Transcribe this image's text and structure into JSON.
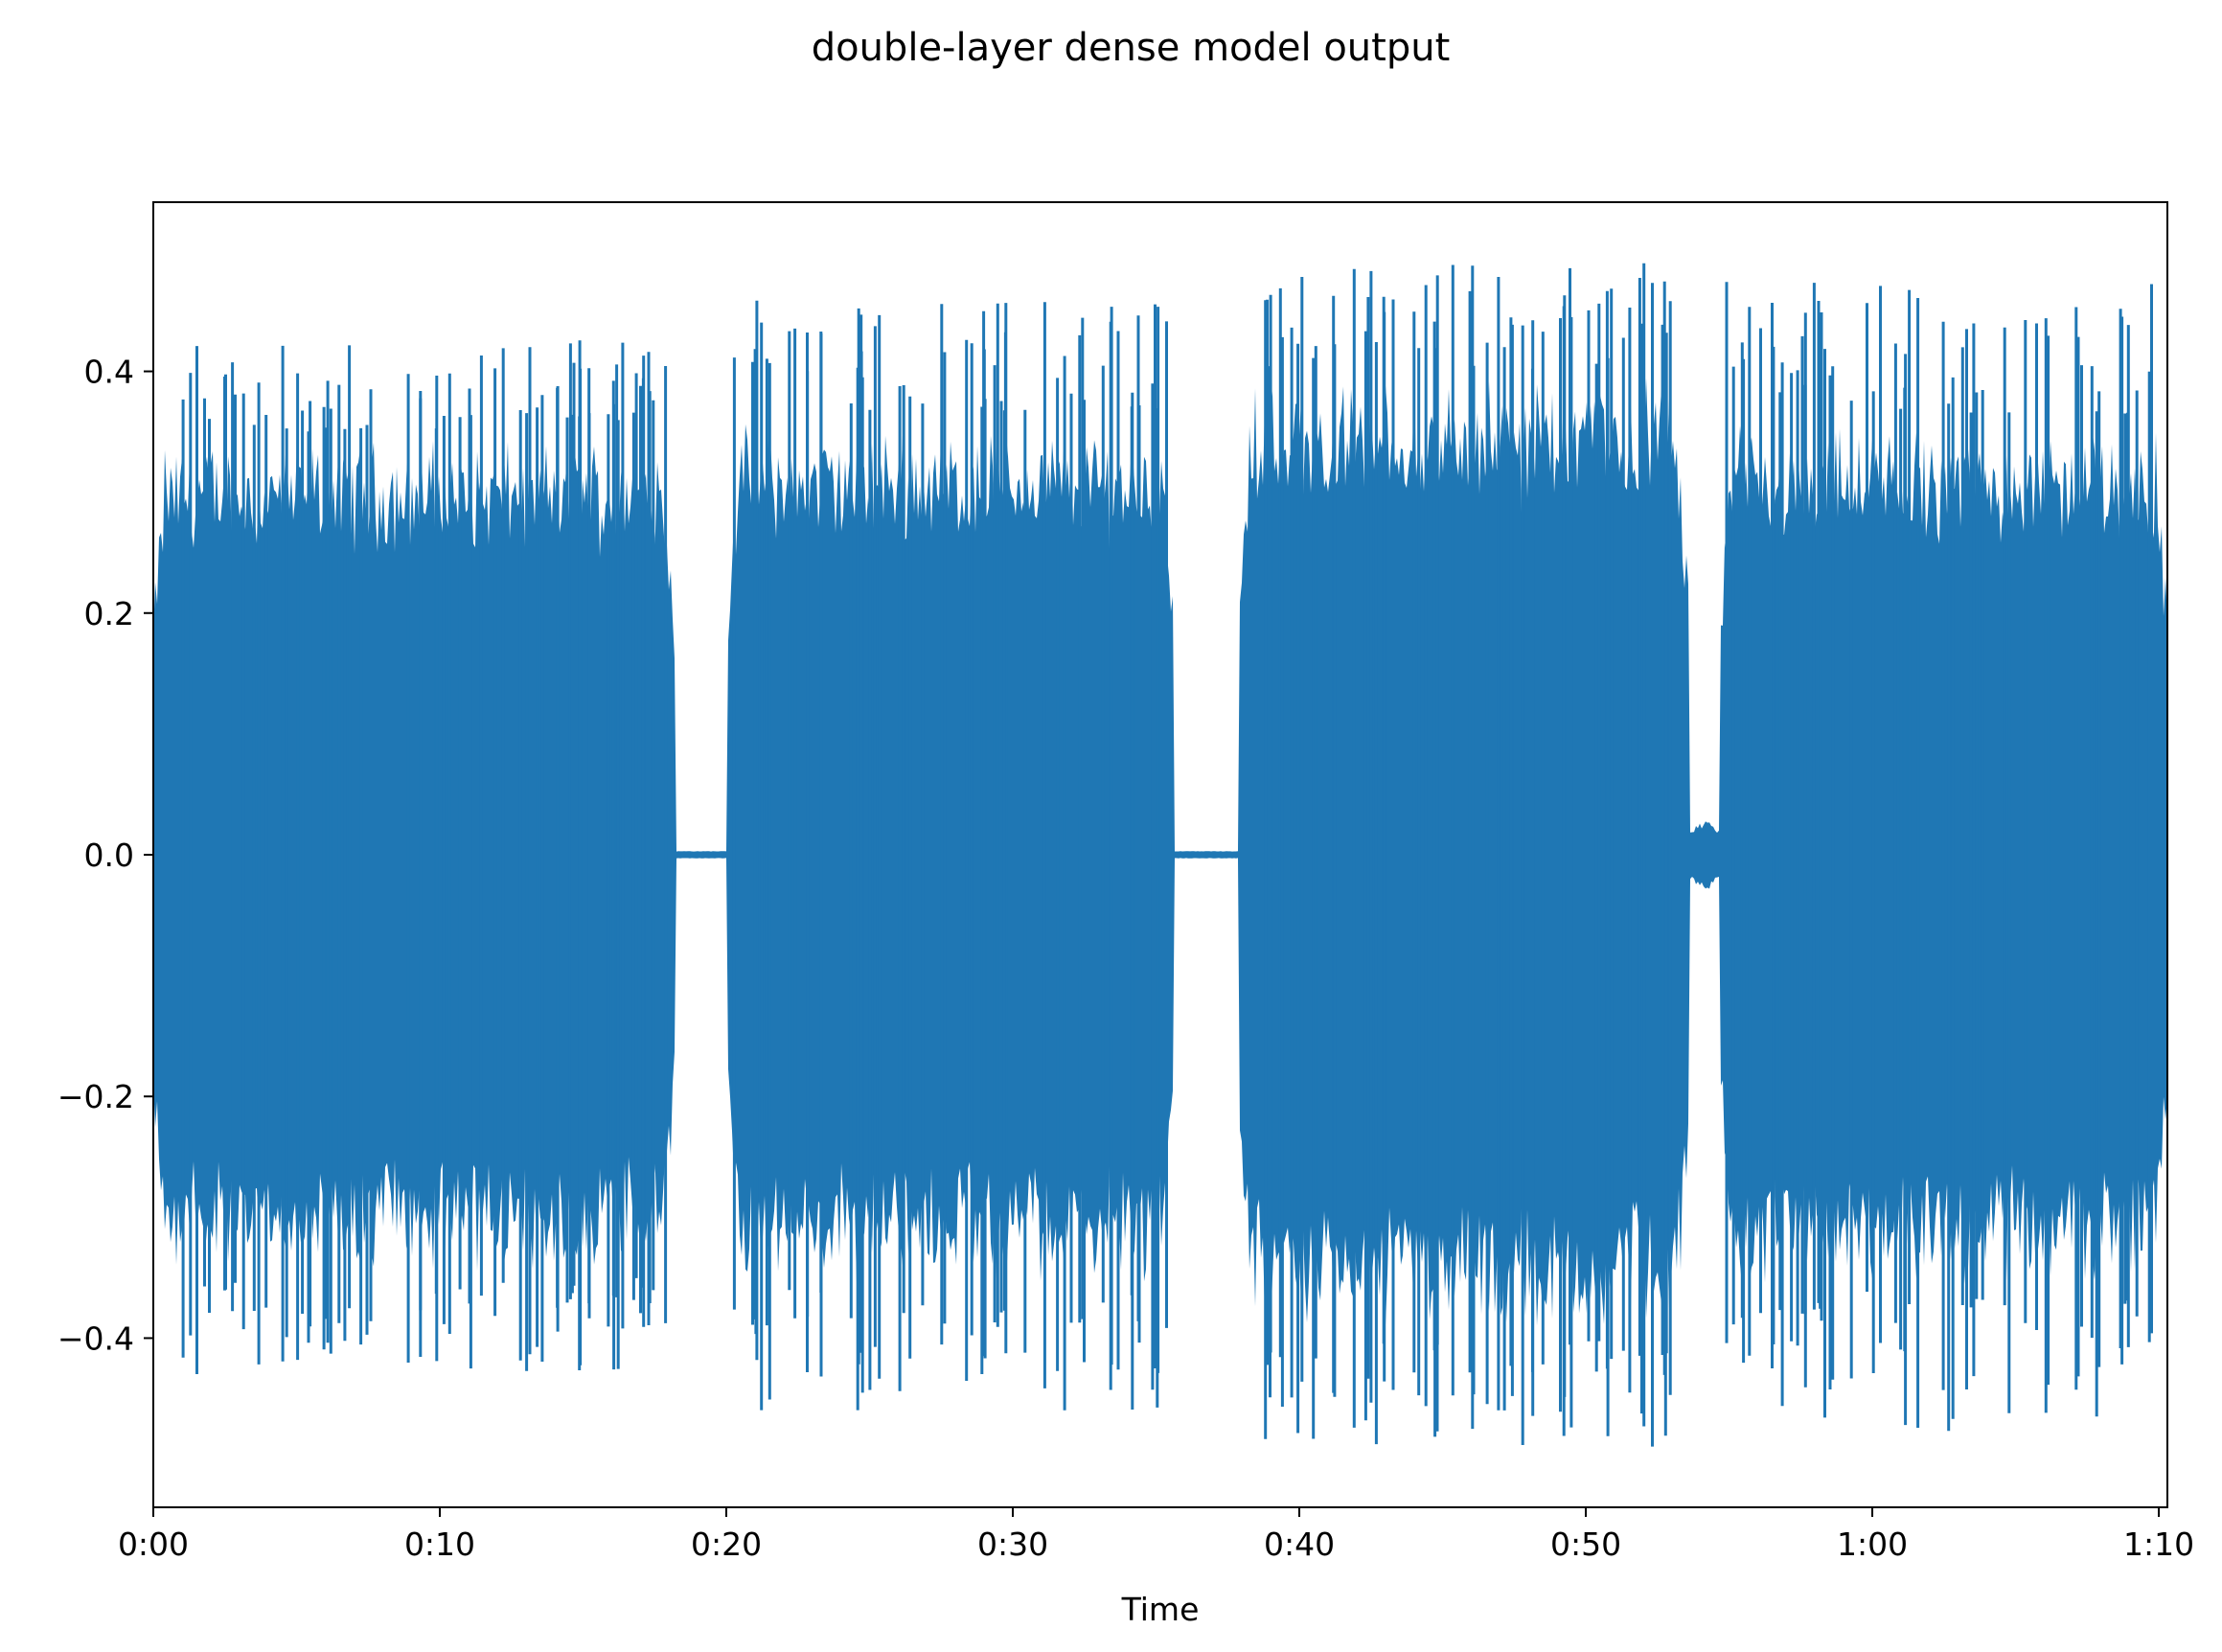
{
  "chart_data": {
    "type": "line",
    "title": "double-layer dense model output",
    "xlabel": "Time",
    "ylabel": "",
    "x_unit": "seconds",
    "xlim": [
      0,
      70.3
    ],
    "ylim": [
      -0.54,
      0.54
    ],
    "x_ticks": [
      {
        "value": 0,
        "label": "0:00"
      },
      {
        "value": 10,
        "label": "0:10"
      },
      {
        "value": 20,
        "label": "0:20"
      },
      {
        "value": 30,
        "label": "0:30"
      },
      {
        "value": 40,
        "label": "0:40"
      },
      {
        "value": 50,
        "label": "0:50"
      },
      {
        "value": 60,
        "label": "1:00"
      },
      {
        "value": 70,
        "label": "1:10"
      }
    ],
    "y_ticks": [
      {
        "value": -0.4,
        "label": "−0.4"
      },
      {
        "value": -0.2,
        "label": "−0.2"
      },
      {
        "value": 0.0,
        "label": "0.0"
      },
      {
        "value": 0.2,
        "label": "0.2"
      },
      {
        "value": 0.4,
        "label": "0.4"
      }
    ],
    "grid": false,
    "series": [
      {
        "color": "#1f77b4",
        "segments": [
          {
            "start": 0.0,
            "end": 18.2,
            "envelope": 0.35,
            "peak": 0.43
          },
          {
            "start": 18.2,
            "end": 20.0,
            "envelope": 0.0,
            "peak": 0.0
          },
          {
            "start": 20.0,
            "end": 35.6,
            "envelope": 0.36,
            "peak": 0.46
          },
          {
            "start": 35.6,
            "end": 37.9,
            "envelope": 0.0,
            "peak": 0.0
          },
          {
            "start": 37.9,
            "end": 53.6,
            "envelope": 0.4,
            "peak": 0.49
          },
          {
            "start": 53.6,
            "end": 54.7,
            "envelope": 0.03,
            "peak": 0.03
          },
          {
            "start": 54.7,
            "end": 70.3,
            "envelope": 0.36,
            "peak": 0.48
          }
        ]
      }
    ]
  }
}
